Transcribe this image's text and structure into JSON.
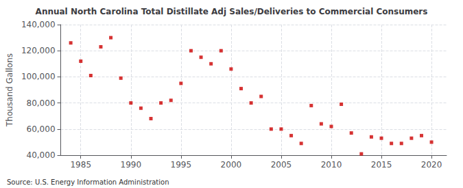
{
  "chart_data": {
    "type": "scatter",
    "title": "Annual North Carolina Total Distillate Adj Sales/Deliveries to Commercial Consumers",
    "ylabel": "Thousand Gallons",
    "annotations": [
      "Source: U.S. Energy Information Administration"
    ],
    "x": [
      1984,
      1985,
      1986,
      1987,
      1988,
      1989,
      1990,
      1991,
      1992,
      1993,
      1994,
      1995,
      1996,
      1997,
      1998,
      1999,
      2000,
      2001,
      2002,
      2003,
      2004,
      2005,
      2006,
      2007,
      2008,
      2009,
      2010,
      2011,
      2012,
      2013,
      2014,
      2015,
      2016,
      2017,
      2018,
      2019,
      2020
    ],
    "values": [
      126000,
      112000,
      101000,
      123000,
      130000,
      99000,
      80000,
      76000,
      68000,
      80000,
      82000,
      95000,
      120000,
      115000,
      110000,
      120000,
      106000,
      91000,
      80000,
      85000,
      60000,
      60000,
      55000,
      49000,
      78000,
      64000,
      62000,
      79000,
      57000,
      41000,
      54000,
      53000,
      49000,
      49000,
      53000,
      55000,
      50000
    ],
    "color": "#cc0000",
    "marker": "square",
    "xlim": [
      1983,
      2021.5
    ],
    "xticks": [
      1985,
      1990,
      1995,
      2000,
      2005,
      2010,
      2015,
      2020
    ],
    "ylim": [
      40000,
      140000
    ],
    "yticks": [
      {
        "value": 40000,
        "label": "40,000"
      },
      {
        "value": 60000,
        "label": "60,000"
      },
      {
        "value": 80000,
        "label": "80,000"
      },
      {
        "value": 100000,
        "label": "100,000"
      },
      {
        "value": 120000,
        "label": "120,000"
      },
      {
        "value": 140000,
        "label": "140,000"
      }
    ],
    "grid": true
  }
}
